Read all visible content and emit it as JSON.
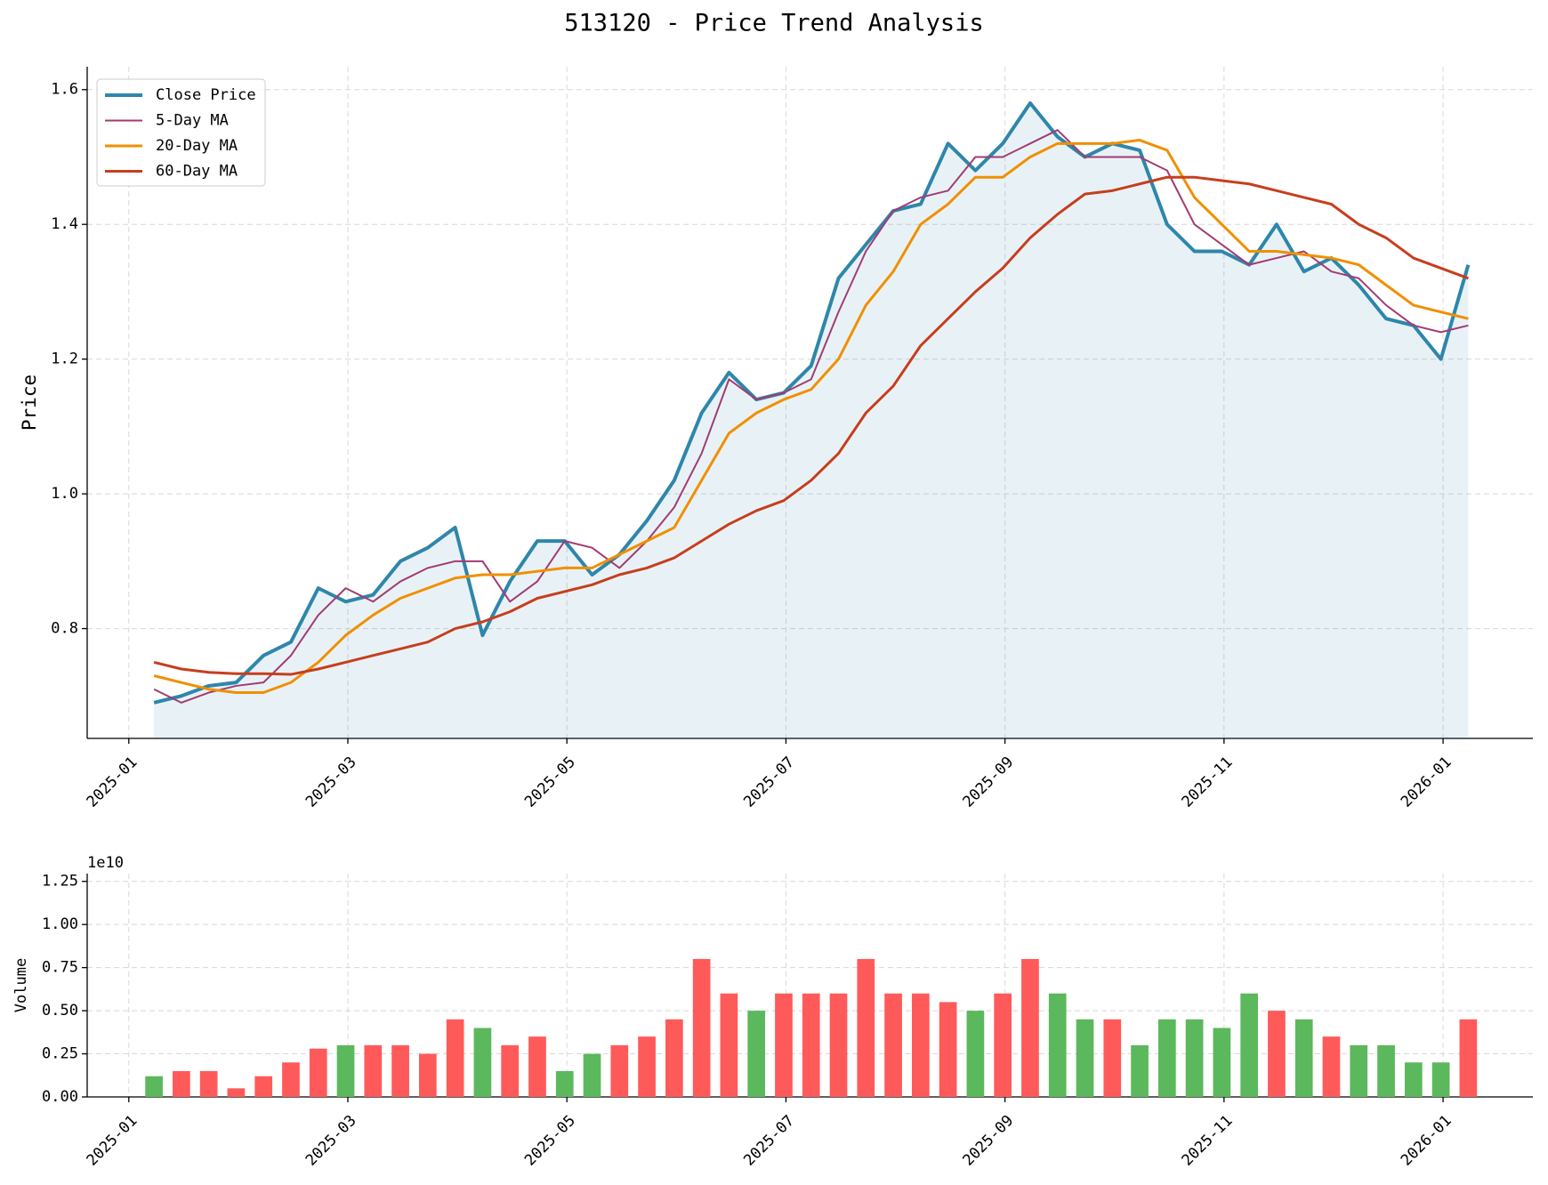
{
  "chart_data": [
    {
      "type": "line",
      "title": "513120 - Price Trend Analysis",
      "ylabel": "Price",
      "grid": true,
      "legend": "upper left",
      "fill_under": 0,
      "x": [
        0.23,
        0.48,
        0.73,
        0.98,
        1.23,
        1.48,
        1.73,
        1.98,
        2.23,
        2.48,
        2.73,
        2.98,
        3.23,
        3.48,
        3.73,
        3.98,
        4.23,
        4.48,
        4.73,
        4.98,
        5.23,
        5.48,
        5.73,
        5.98,
        6.23,
        6.48,
        6.73,
        6.98,
        7.23,
        7.48,
        7.73,
        7.98,
        8.23,
        8.48,
        8.73,
        8.98,
        9.23,
        9.48,
        9.73,
        9.98,
        10.23,
        10.48,
        10.73,
        10.98,
        11.23,
        11.48,
        11.73,
        11.98,
        12.23
      ],
      "xlim": [
        -0.38,
        12.82
      ],
      "xticks": [
        {
          "value": 0,
          "label": "2025-01"
        },
        {
          "value": 2,
          "label": "2025-03"
        },
        {
          "value": 4,
          "label": "2025-05"
        },
        {
          "value": 6,
          "label": "2025-07"
        },
        {
          "value": 8,
          "label": "2025-09"
        },
        {
          "value": 10,
          "label": "2025-11"
        },
        {
          "value": 12,
          "label": "2026-01"
        }
      ],
      "ylim": [
        0.637,
        1.634
      ],
      "yticks": [
        0.8,
        {
          "value": 1.0,
          "label": "1.0"
        },
        1.2,
        1.4,
        1.6
      ],
      "series": [
        {
          "name": "Close Price",
          "color": "#2e86ab",
          "width": 4,
          "values": [
            0.69,
            0.7,
            0.715,
            0.72,
            0.76,
            0.78,
            0.86,
            0.84,
            0.85,
            0.9,
            0.92,
            0.95,
            0.79,
            0.87,
            0.93,
            0.93,
            0.88,
            0.91,
            0.96,
            1.02,
            1.12,
            1.18,
            1.14,
            1.15,
            1.19,
            1.32,
            1.37,
            1.42,
            1.43,
            1.52,
            1.48,
            1.52,
            1.58,
            1.53,
            1.5,
            1.52,
            1.51,
            1.4,
            1.36,
            1.36,
            1.34,
            1.4,
            1.33,
            1.35,
            1.31,
            1.26,
            1.25,
            1.2,
            1.34
          ]
        },
        {
          "name": "5-Day MA",
          "color": "#a23b72",
          "width": 2,
          "values": [
            0.71,
            0.69,
            0.705,
            0.715,
            0.72,
            0.76,
            0.82,
            0.86,
            0.84,
            0.87,
            0.89,
            0.9,
            0.9,
            0.84,
            0.87,
            0.93,
            0.92,
            0.89,
            0.93,
            0.98,
            1.06,
            1.17,
            1.14,
            1.15,
            1.17,
            1.27,
            1.36,
            1.42,
            1.44,
            1.45,
            1.5,
            1.5,
            1.52,
            1.54,
            1.5,
            1.5,
            1.5,
            1.48,
            1.4,
            1.37,
            1.34,
            1.35,
            1.36,
            1.33,
            1.32,
            1.28,
            1.25,
            1.24,
            1.25
          ]
        },
        {
          "name": "20-Day MA",
          "color": "#f18f01",
          "width": 3,
          "values": [
            0.73,
            0.72,
            0.71,
            0.705,
            0.705,
            0.72,
            0.75,
            0.79,
            0.82,
            0.845,
            0.86,
            0.875,
            0.88,
            0.88,
            0.885,
            0.89,
            0.89,
            0.91,
            0.93,
            0.95,
            1.02,
            1.09,
            1.12,
            1.14,
            1.155,
            1.2,
            1.28,
            1.33,
            1.4,
            1.43,
            1.47,
            1.47,
            1.5,
            1.52,
            1.52,
            1.52,
            1.525,
            1.51,
            1.44,
            1.4,
            1.36,
            1.36,
            1.355,
            1.35,
            1.34,
            1.31,
            1.28,
            1.27,
            1.26
          ]
        },
        {
          "name": "60-Day MA",
          "color": "#c73e1d",
          "width": 3,
          "values": [
            0.75,
            0.74,
            0.735,
            0.733,
            0.733,
            0.732,
            0.74,
            0.75,
            0.76,
            0.77,
            0.78,
            0.8,
            0.81,
            0.825,
            0.845,
            0.855,
            0.865,
            0.88,
            0.89,
            0.905,
            0.93,
            0.955,
            0.975,
            0.99,
            1.02,
            1.06,
            1.12,
            1.16,
            1.22,
            1.26,
            1.3,
            1.335,
            1.38,
            1.415,
            1.445,
            1.45,
            1.46,
            1.47,
            1.47,
            1.465,
            1.46,
            1.45,
            1.44,
            1.43,
            1.4,
            1.38,
            1.35,
            1.335,
            1.32
          ]
        }
      ]
    },
    {
      "type": "bar",
      "ylabel": "Volume",
      "offset_label": "1e10",
      "grid": true,
      "x": [
        0.23,
        0.48,
        0.73,
        0.98,
        1.23,
        1.48,
        1.73,
        1.98,
        2.23,
        2.48,
        2.73,
        2.98,
        3.23,
        3.48,
        3.73,
        3.98,
        4.23,
        4.48,
        4.73,
        4.98,
        5.23,
        5.48,
        5.73,
        5.98,
        6.23,
        6.48,
        6.73,
        6.98,
        7.23,
        7.48,
        7.73,
        7.98,
        8.23,
        8.48,
        8.73,
        8.98,
        9.23,
        9.48,
        9.73,
        9.98,
        10.23,
        10.48,
        10.73,
        10.98,
        11.23,
        11.48,
        11.73,
        11.98,
        12.23
      ],
      "xlim": [
        -0.38,
        12.82
      ],
      "xticks": [
        {
          "value": 0,
          "label": "2025-01"
        },
        {
          "value": 2,
          "label": "2025-03"
        },
        {
          "value": 4,
          "label": "2025-05"
        },
        {
          "value": 6,
          "label": "2025-07"
        },
        {
          "value": 8,
          "label": "2025-09"
        },
        {
          "value": 10,
          "label": "2025-11"
        },
        {
          "value": 12,
          "label": "2026-01"
        }
      ],
      "ylim": [
        0,
        1.295
      ],
      "yticks": [
        {
          "value": 0,
          "label": "0.00"
        },
        0.25,
        {
          "value": 0.5,
          "label": "0.50"
        },
        0.75,
        {
          "value": 1.0,
          "label": "1.00"
        },
        1.25
      ],
      "values": [
        0.12,
        0.15,
        0.15,
        0.05,
        0.12,
        0.2,
        0.28,
        0.3,
        0.3,
        0.3,
        0.25,
        0.45,
        0.4,
        0.3,
        0.35,
        0.15,
        0.25,
        0.3,
        0.35,
        0.45,
        0.8,
        0.6,
        0.5,
        0.6,
        0.6,
        0.6,
        0.8,
        0.6,
        0.6,
        0.55,
        0.5,
        0.6,
        0.8,
        0.6,
        0.45,
        0.45,
        0.3,
        0.45,
        0.45,
        0.4,
        0.6,
        0.5,
        0.45,
        0.35,
        0.3,
        0.3,
        0.2,
        0.2,
        0.45
      ],
      "colors": [
        "#5cb85c",
        "#ff5a5a",
        "#ff5a5a",
        "#ff5a5a",
        "#ff5a5a",
        "#ff5a5a",
        "#ff5a5a",
        "#5cb85c",
        "#ff5a5a",
        "#ff5a5a",
        "#ff5a5a",
        "#ff5a5a",
        "#5cb85c",
        "#ff5a5a",
        "#ff5a5a",
        "#5cb85c",
        "#5cb85c",
        "#ff5a5a",
        "#ff5a5a",
        "#ff5a5a",
        "#ff5a5a",
        "#ff5a5a",
        "#5cb85c",
        "#ff5a5a",
        "#ff5a5a",
        "#ff5a5a",
        "#ff5a5a",
        "#ff5a5a",
        "#ff5a5a",
        "#ff5a5a",
        "#5cb85c",
        "#ff5a5a",
        "#ff5a5a",
        "#5cb85c",
        "#5cb85c",
        "#ff5a5a",
        "#5cb85c",
        "#5cb85c",
        "#5cb85c",
        "#5cb85c",
        "#5cb85c",
        "#ff5a5a",
        "#5cb85c",
        "#ff5a5a",
        "#5cb85c",
        "#5cb85c",
        "#5cb85c",
        "#5cb85c",
        "#ff5a5a"
      ]
    }
  ]
}
